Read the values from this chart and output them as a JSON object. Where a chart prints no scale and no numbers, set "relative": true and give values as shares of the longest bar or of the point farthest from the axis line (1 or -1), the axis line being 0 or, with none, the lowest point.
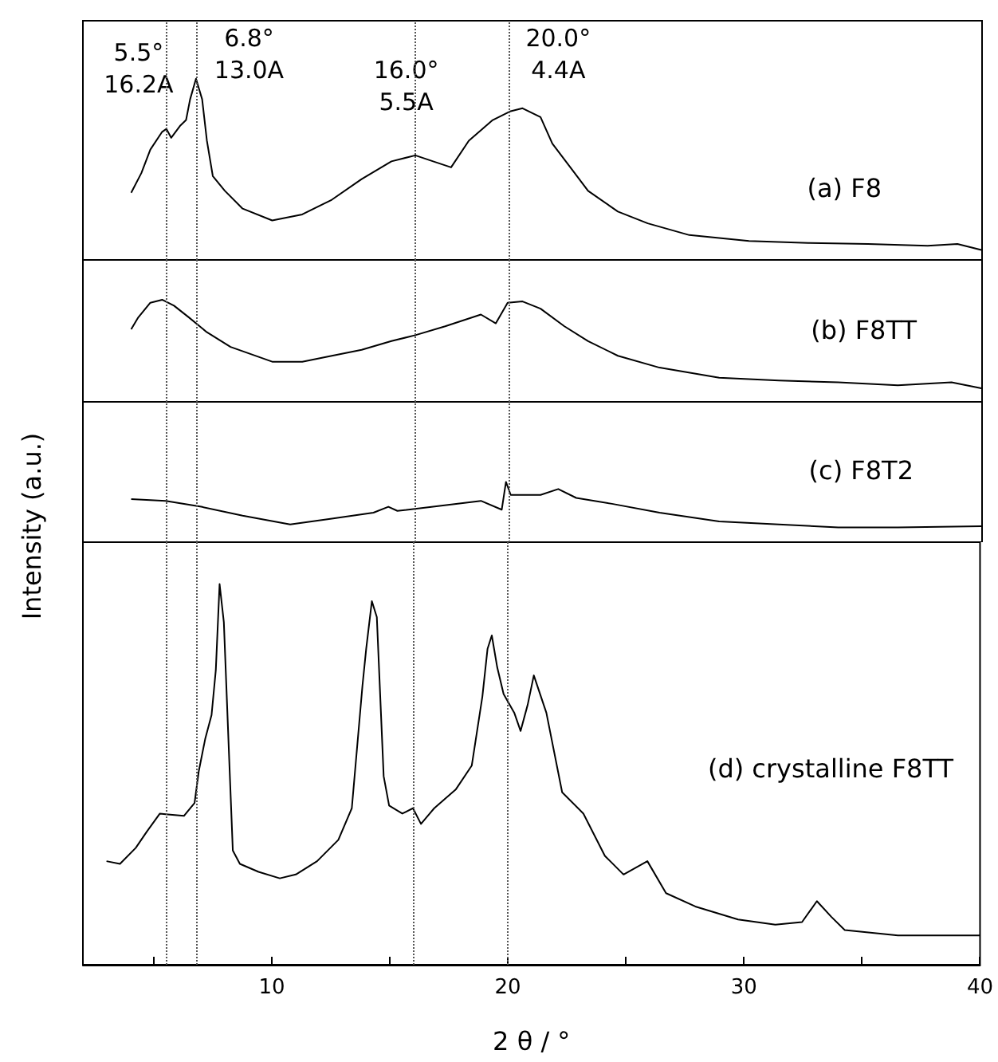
{
  "chart_data": [
    {
      "type": "line",
      "relative": true,
      "xlim": [
        2,
        40
      ],
      "tick_labels": false,
      "ref_lines": [
        {
          "axis": "x",
          "value": 5.5,
          "label": "5.5°\n16.2A",
          "color": "#555555",
          "line_style": "dotted"
        },
        {
          "axis": "x",
          "value": 6.8,
          "label": "6.8°\n13.0A",
          "color": "#555555",
          "line_style": "dotted"
        },
        {
          "axis": "x",
          "value": 16.0,
          "label": "16.0°\n5.5A",
          "color": "#555555",
          "line_style": "dotted"
        },
        {
          "axis": "x",
          "value": 20.0,
          "label": "20.0°\n4.4A",
          "color": "#555555",
          "line_style": "dotted"
        }
      ],
      "series": [
        {
          "name": "(a) F8",
          "color": "#000000",
          "x": [
            4.04,
            4.47,
            4.85,
            5.35,
            5.53,
            5.73,
            6.1,
            6.36,
            6.53,
            6.78,
            7.04,
            7.24,
            7.49,
            8.0,
            8.75,
            10.0,
            11.27,
            12.52,
            13.78,
            15.04,
            16.05,
            16.8,
            17.56,
            18.31,
            19.32,
            20.08,
            20.58,
            21.34,
            21.84,
            22.6,
            23.35,
            24.61,
            25.87,
            27.63,
            30.15,
            32.66,
            35.18,
            37.7,
            38.96,
            39.97
          ],
          "values": [
            0.371,
            0.479,
            0.609,
            0.707,
            0.723,
            0.674,
            0.739,
            0.772,
            0.886,
            1.0,
            0.886,
            0.658,
            0.463,
            0.381,
            0.283,
            0.218,
            0.251,
            0.332,
            0.446,
            0.544,
            0.577,
            0.544,
            0.511,
            0.658,
            0.772,
            0.821,
            0.837,
            0.788,
            0.642,
            0.511,
            0.381,
            0.267,
            0.202,
            0.137,
            0.104,
            0.094,
            0.088,
            0.078,
            0.088,
            0.055
          ]
        }
      ]
    },
    {
      "type": "line",
      "relative": true,
      "xlim": [
        2,
        40
      ],
      "tick_labels": false,
      "ref_lines": [
        {
          "axis": "x",
          "value": 5.5,
          "color": "#555555",
          "line_style": "dotted"
        },
        {
          "axis": "x",
          "value": 6.8,
          "color": "#555555",
          "line_style": "dotted"
        },
        {
          "axis": "x",
          "value": 16.0,
          "color": "#555555",
          "line_style": "dotted"
        },
        {
          "axis": "x",
          "value": 20.0,
          "color": "#555555",
          "line_style": "dotted"
        }
      ],
      "series": [
        {
          "name": "(b) F8TT",
          "color": "#000000",
          "x": [
            4.04,
            4.34,
            4.85,
            5.35,
            5.85,
            6.48,
            7.24,
            8.24,
            10.0,
            11.27,
            12.52,
            13.78,
            15.04,
            16.05,
            17.31,
            18.82,
            19.45,
            19.95,
            20.58,
            21.34,
            22.35,
            23.35,
            24.61,
            26.37,
            28.89,
            31.41,
            33.92,
            36.44,
            38.71,
            39.97
          ],
          "values": [
            0.711,
            0.827,
            0.971,
            1.0,
            0.942,
            0.827,
            0.682,
            0.538,
            0.393,
            0.393,
            0.451,
            0.509,
            0.595,
            0.653,
            0.74,
            0.855,
            0.769,
            0.971,
            0.983,
            0.913,
            0.74,
            0.595,
            0.451,
            0.335,
            0.237,
            0.208,
            0.191,
            0.162,
            0.191,
            0.133
          ]
        }
      ]
    },
    {
      "type": "line",
      "relative": true,
      "xlim": [
        2,
        40
      ],
      "tick_labels": false,
      "ref_lines": [
        {
          "axis": "x",
          "value": 5.5,
          "color": "#555555",
          "line_style": "dotted"
        },
        {
          "axis": "x",
          "value": 6.8,
          "color": "#555555",
          "line_style": "dotted"
        },
        {
          "axis": "x",
          "value": 16.0,
          "color": "#555555",
          "line_style": "dotted"
        },
        {
          "axis": "x",
          "value": 20.0,
          "color": "#555555",
          "line_style": "dotted"
        }
      ],
      "series": [
        {
          "name": "(c) F8T2",
          "color": "#000000",
          "x": [
            4.04,
            5.5,
            7.0,
            8.75,
            10.76,
            12.52,
            14.28,
            14.91,
            15.29,
            16.8,
            18.82,
            19.7,
            19.88,
            20.08,
            21.34,
            22.09,
            22.85,
            24.36,
            26.37,
            28.89,
            31.41,
            33.92,
            36.44,
            39.97
          ],
          "values": [
            0.716,
            0.686,
            0.588,
            0.441,
            0.294,
            0.392,
            0.49,
            0.588,
            0.52,
            0.588,
            0.686,
            0.539,
            1.0,
            0.784,
            0.784,
            0.882,
            0.735,
            0.637,
            0.49,
            0.343,
            0.294,
            0.245,
            0.245,
            0.265
          ]
        }
      ]
    },
    {
      "type": "line",
      "relative": true,
      "xlim": [
        2,
        40
      ],
      "tick_labels": "x",
      "xlabel": "2 θ / °",
      "ylabel": "Intensity (a.u.)",
      "xticks": [
        {
          "value": 5,
          "label": null
        },
        10,
        {
          "value": 15,
          "label": null
        },
        20,
        {
          "value": 25,
          "label": null
        },
        30,
        {
          "value": 35,
          "label": null
        },
        40
      ],
      "ref_lines": [
        {
          "axis": "x",
          "value": 5.5,
          "color": "#555555",
          "line_style": "dotted"
        },
        {
          "axis": "x",
          "value": 6.8,
          "color": "#555555",
          "line_style": "dotted"
        },
        {
          "axis": "x",
          "value": 16.0,
          "color": "#555555",
          "line_style": "dotted"
        },
        {
          "axis": "x",
          "value": 20.0,
          "color": "#555555",
          "line_style": "dotted"
        }
      ],
      "series": [
        {
          "name": "(d) crystalline F8TT",
          "color": "#000000",
          "x": [
            3.0,
            3.57,
            4.24,
            4.7,
            5.26,
            5.6,
            6.28,
            6.73,
            6.91,
            7.18,
            7.45,
            7.63,
            7.79,
            7.97,
            8.19,
            8.35,
            8.65,
            9.44,
            10.34,
            11.02,
            11.92,
            12.82,
            13.39,
            13.84,
            14.0,
            14.24,
            14.45,
            14.74,
            14.97,
            15.53,
            15.98,
            16.32,
            16.88,
            17.79,
            18.47,
            18.92,
            19.14,
            19.32,
            19.55,
            19.82,
            20.27,
            20.54,
            20.84,
            21.1,
            21.63,
            22.3,
            23.2,
            24.11,
            24.9,
            25.91,
            26.7,
            27.94,
            29.75,
            31.33,
            32.46,
            33.09,
            33.7,
            34.27,
            36.52,
            38.78,
            40.0
          ],
          "values": [
            0.272,
            0.265,
            0.307,
            0.349,
            0.397,
            0.395,
            0.391,
            0.425,
            0.509,
            0.593,
            0.656,
            0.774,
            1.0,
            0.9,
            0.551,
            0.3,
            0.265,
            0.244,
            0.227,
            0.237,
            0.272,
            0.328,
            0.411,
            0.732,
            0.83,
            0.955,
            0.913,
            0.495,
            0.418,
            0.397,
            0.411,
            0.37,
            0.411,
            0.46,
            0.523,
            0.704,
            0.83,
            0.865,
            0.781,
            0.711,
            0.662,
            0.614,
            0.683,
            0.76,
            0.662,
            0.453,
            0.397,
            0.286,
            0.237,
            0.272,
            0.188,
            0.153,
            0.119,
            0.105,
            0.112,
            0.167,
            0.126,
            0.091,
            0.077,
            0.077,
            0.077
          ]
        }
      ]
    }
  ]
}
